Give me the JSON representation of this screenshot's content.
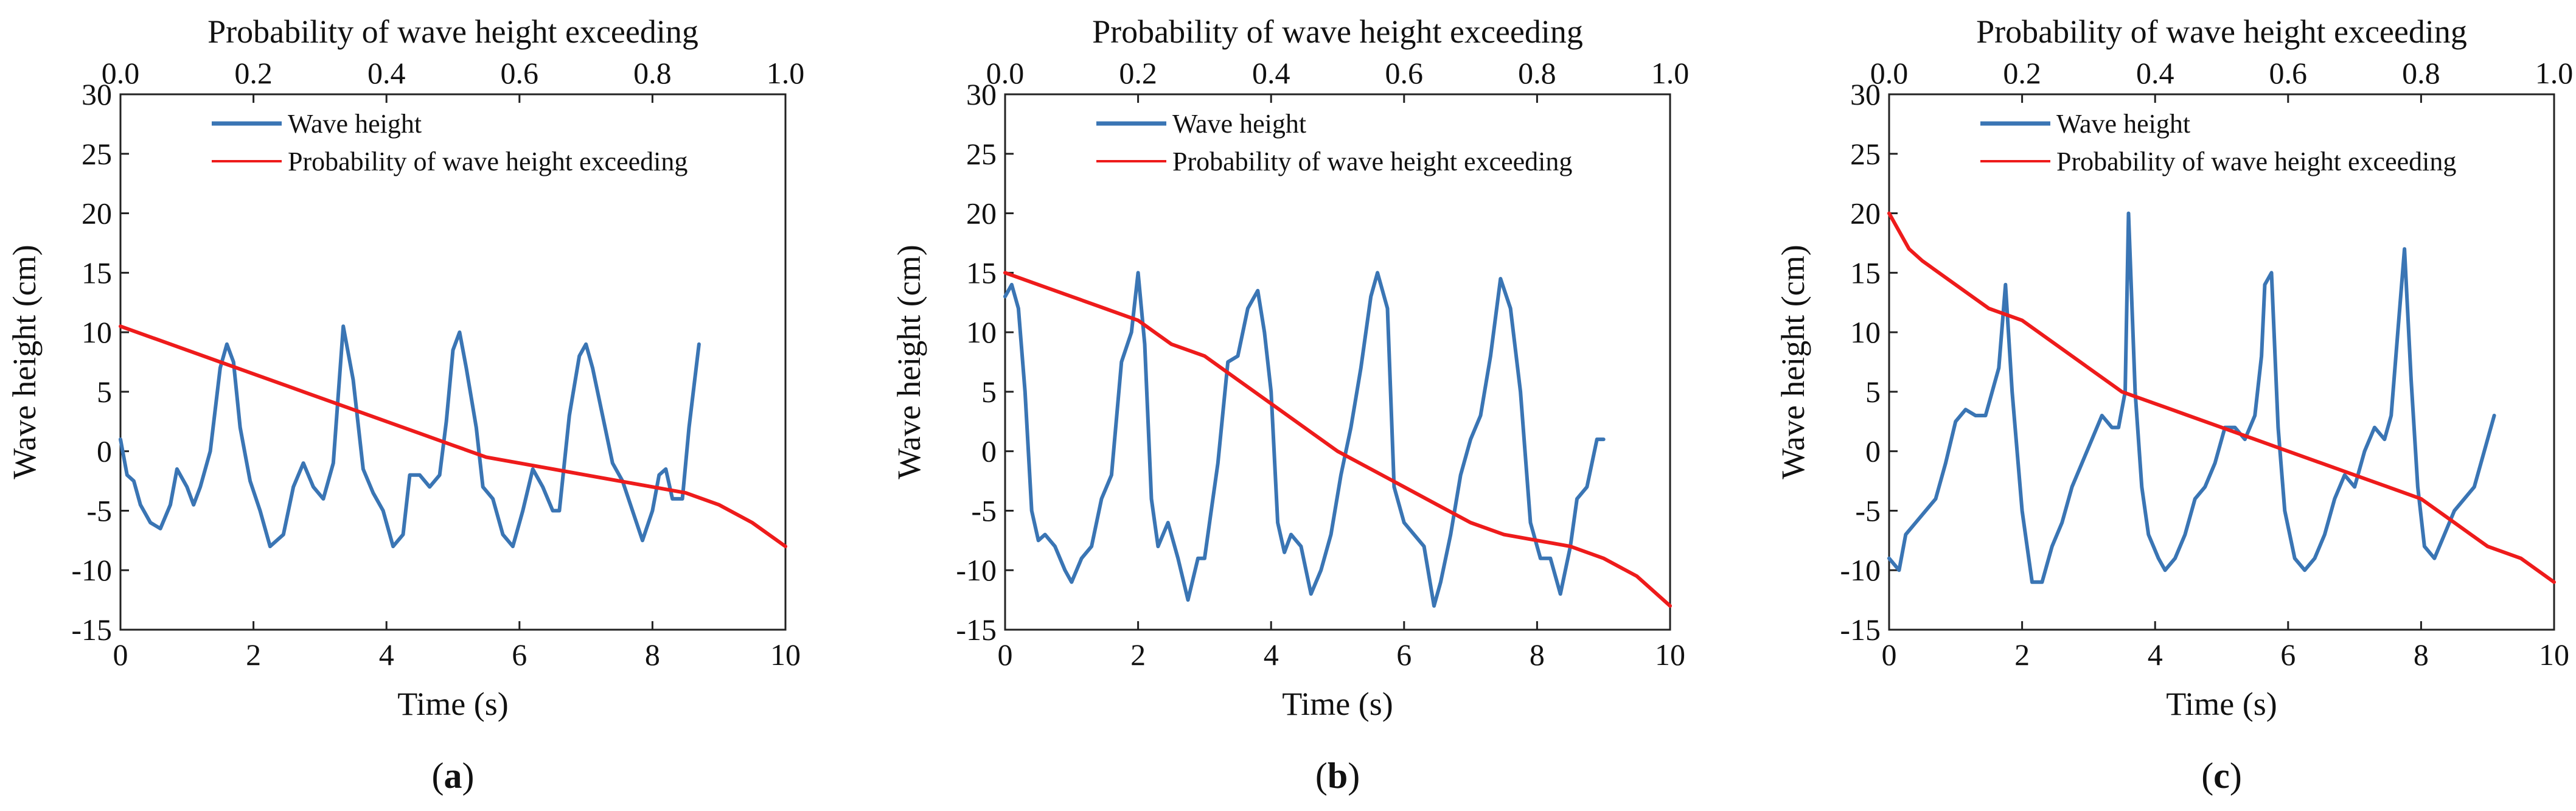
{
  "colors": {
    "wave": "#3a75b4",
    "prob": "#ee1b1b",
    "axis": "#222222"
  },
  "chart_data": [
    {
      "type": "line",
      "panel_label": "(a)",
      "panel_letter": "a",
      "xlabel": "Time (s)",
      "ylabel": "Wave height (cm)",
      "top_xlabel": "Probability of wave height exceeding",
      "xlim": [
        0,
        10
      ],
      "ylim": [
        -15,
        30
      ],
      "top_xlim": [
        0.0,
        1.0
      ],
      "x_ticks": [
        "0",
        "2",
        "4",
        "6",
        "8",
        "10"
      ],
      "y_ticks": [
        "-15",
        "-10",
        "-5",
        "0",
        "5",
        "10",
        "15",
        "20",
        "25",
        "30"
      ],
      "top_ticks": [
        "0.0",
        "0.2",
        "0.4",
        "0.6",
        "0.8",
        "1.0"
      ],
      "legend": [
        "Wave height",
        "Probability of wave height exceeding"
      ],
      "series": [
        {
          "name": "Wave height",
          "axis": "bottom",
          "color": "#3a75b4",
          "x": [
            0,
            0.1,
            0.2,
            0.3,
            0.45,
            0.6,
            0.75,
            0.85,
            1.0,
            1.1,
            1.2,
            1.35,
            1.5,
            1.6,
            1.7,
            1.8,
            1.95,
            2.1,
            2.25,
            2.45,
            2.6,
            2.75,
            2.9,
            3.05,
            3.2,
            3.35,
            3.5,
            3.65,
            3.8,
            3.95,
            4.1,
            4.25,
            4.35,
            4.5,
            4.65,
            4.8,
            4.9,
            5.0,
            5.1,
            5.2,
            5.35,
            5.45,
            5.6,
            5.75,
            5.9,
            6.05,
            6.2,
            6.35,
            6.5,
            6.6,
            6.75,
            6.9,
            7.0,
            7.1,
            7.25,
            7.4,
            7.55,
            7.7,
            7.85,
            8.0,
            8.1,
            8.2,
            8.3,
            8.45,
            8.55,
            8.7
          ],
          "y": [
            1,
            -2,
            -2.5,
            -4.5,
            -6,
            -6.5,
            -4.5,
            -1.5,
            -3,
            -4.5,
            -3,
            0,
            7,
            9,
            7.5,
            2,
            -2.5,
            -5,
            -8,
            -7,
            -3,
            -1,
            -3,
            -4,
            -1,
            10.5,
            6,
            -1.5,
            -3.5,
            -5,
            -8,
            -7,
            -2,
            -2,
            -3,
            -2,
            2.5,
            8.5,
            10,
            7,
            2,
            -3,
            -4,
            -7,
            -8,
            -5,
            -1.5,
            -3,
            -5,
            -5,
            3,
            8,
            9,
            7,
            3,
            -1,
            -2.5,
            -5,
            -7.5,
            -5,
            -2,
            -1.5,
            -4,
            -4,
            2,
            9
          ]
        },
        {
          "name": "Probability of wave height exceeding",
          "axis": "top",
          "color": "#ee1b1b",
          "x": [
            0,
            0.05,
            0.1,
            0.15,
            0.2,
            0.25,
            0.3,
            0.35,
            0.4,
            0.45,
            0.5,
            0.55,
            0.6,
            0.65,
            0.7,
            0.75,
            0.8,
            0.85,
            0.9,
            0.95,
            1.0
          ],
          "y": [
            10.5,
            9.5,
            8.5,
            7.5,
            6.5,
            5.5,
            4.5,
            3.5,
            2.5,
            1.5,
            0.5,
            -0.5,
            -1,
            -1.5,
            -2,
            -2.5,
            -3,
            -3.5,
            -4.5,
            -6,
            -8
          ]
        }
      ]
    },
    {
      "type": "line",
      "panel_label": "(b)",
      "panel_letter": "b",
      "xlabel": "Time (s)",
      "ylabel": "Wave height (cm)",
      "top_xlabel": "Probability of wave height exceeding",
      "xlim": [
        0,
        10
      ],
      "ylim": [
        -15,
        30
      ],
      "top_xlim": [
        0.0,
        1.0
      ],
      "x_ticks": [
        "0",
        "2",
        "4",
        "6",
        "8",
        "10"
      ],
      "y_ticks": [
        "-15",
        "-10",
        "-5",
        "0",
        "5",
        "10",
        "15",
        "20",
        "25",
        "30"
      ],
      "top_ticks": [
        "0.0",
        "0.2",
        "0.4",
        "0.6",
        "0.8",
        "1.0"
      ],
      "legend": [
        "Wave height",
        "Probability of wave height exceeding"
      ],
      "series": [
        {
          "name": "Wave height",
          "axis": "bottom",
          "color": "#3a75b4",
          "x": [
            0,
            0.1,
            0.2,
            0.3,
            0.4,
            0.5,
            0.6,
            0.75,
            0.9,
            1.0,
            1.15,
            1.3,
            1.45,
            1.6,
            1.75,
            1.9,
            2.0,
            2.1,
            2.2,
            2.3,
            2.45,
            2.6,
            2.75,
            2.9,
            3.0,
            3.1,
            3.2,
            3.35,
            3.5,
            3.65,
            3.8,
            3.9,
            4.0,
            4.1,
            4.2,
            4.3,
            4.45,
            4.6,
            4.75,
            4.9,
            5.05,
            5.2,
            5.35,
            5.5,
            5.6,
            5.75,
            5.85,
            6.0,
            6.15,
            6.3,
            6.45,
            6.55,
            6.7,
            6.85,
            7.0,
            7.15,
            7.3,
            7.45,
            7.6,
            7.75,
            7.9,
            8.05,
            8.2,
            8.35,
            8.5,
            8.6,
            8.75,
            8.9,
            9.0
          ],
          "y": [
            13,
            14,
            12,
            5,
            -5,
            -7.5,
            -7,
            -8,
            -10,
            -11,
            -9,
            -8,
            -4,
            -2,
            7.5,
            10,
            15,
            9,
            -4,
            -8,
            -6,
            -9,
            -12.5,
            -9,
            -9,
            -5,
            -1,
            7.5,
            8,
            12,
            13.5,
            10,
            5,
            -6,
            -8.5,
            -7,
            -8,
            -12,
            -10,
            -7,
            -2,
            2,
            7,
            13,
            15,
            12,
            -3,
            -6,
            -7,
            -8,
            -13,
            -11,
            -7,
            -2,
            1,
            3,
            8,
            14.5,
            12,
            5,
            -6,
            -9,
            -9,
            -12,
            -8,
            -4,
            -3,
            1,
            1
          ]
        },
        {
          "name": "Probability of wave height exceeding",
          "axis": "top",
          "color": "#ee1b1b",
          "x": [
            0,
            0.05,
            0.1,
            0.15,
            0.2,
            0.25,
            0.3,
            0.35,
            0.4,
            0.45,
            0.5,
            0.55,
            0.6,
            0.65,
            0.7,
            0.75,
            0.8,
            0.85,
            0.9,
            0.95,
            1.0
          ],
          "y": [
            15,
            14,
            13,
            12,
            11,
            9,
            8,
            6,
            4,
            2,
            0,
            -1.5,
            -3,
            -4.5,
            -6,
            -7,
            -7.5,
            -8,
            -9,
            -10.5,
            -13
          ]
        }
      ]
    },
    {
      "type": "line",
      "panel_label": "(c)",
      "panel_letter": "c",
      "xlabel": "Time (s)",
      "ylabel": "Wave height (cm)",
      "top_xlabel": "Probability of wave height exceeding",
      "xlim": [
        0,
        10
      ],
      "ylim": [
        -15,
        30
      ],
      "top_xlim": [
        0.0,
        1.0
      ],
      "x_ticks": [
        "0",
        "2",
        "4",
        "6",
        "8",
        "10"
      ],
      "y_ticks": [
        "-15",
        "-10",
        "-5",
        "0",
        "5",
        "10",
        "15",
        "20",
        "25",
        "30"
      ],
      "top_ticks": [
        "0.0",
        "0.2",
        "0.4",
        "0.6",
        "0.8",
        "1.0"
      ],
      "legend": [
        "Wave height",
        "Probability of wave height exceeding"
      ],
      "series": [
        {
          "name": "Wave height",
          "axis": "bottom",
          "color": "#3a75b4",
          "x": [
            0,
            0.15,
            0.25,
            0.4,
            0.55,
            0.7,
            0.85,
            1.0,
            1.15,
            1.3,
            1.45,
            1.55,
            1.65,
            1.75,
            1.85,
            2.0,
            2.15,
            2.3,
            2.45,
            2.6,
            2.75,
            2.9,
            3.05,
            3.2,
            3.35,
            3.45,
            3.55,
            3.6,
            3.7,
            3.8,
            3.9,
            4.05,
            4.15,
            4.3,
            4.45,
            4.6,
            4.75,
            4.9,
            5.05,
            5.2,
            5.35,
            5.5,
            5.6,
            5.65,
            5.75,
            5.85,
            5.95,
            6.1,
            6.25,
            6.4,
            6.55,
            6.7,
            6.85,
            7.0,
            7.15,
            7.3,
            7.45,
            7.55,
            7.65,
            7.75,
            7.85,
            7.95,
            8.05,
            8.2,
            8.35,
            8.5,
            8.65,
            8.8,
            8.95,
            9.1
          ],
          "y": [
            -9,
            -10,
            -7,
            -6,
            -5,
            -4,
            -1,
            2.5,
            3.5,
            3,
            3,
            5,
            7,
            14,
            5,
            -5,
            -11,
            -11,
            -8,
            -6,
            -3,
            -1,
            1,
            3,
            2,
            2,
            5,
            20,
            5,
            -3,
            -7,
            -9,
            -10,
            -9,
            -7,
            -4,
            -3,
            -1,
            2,
            2,
            1,
            3,
            8,
            14,
            15,
            2,
            -5,
            -9,
            -10,
            -9,
            -7,
            -4,
            -2,
            -3,
            0,
            2,
            1,
            3,
            10,
            17,
            6,
            -3,
            -8,
            -9,
            -7,
            -5,
            -4,
            -3,
            0,
            3
          ]
        },
        {
          "name": "Probability of wave height exceeding",
          "axis": "top",
          "color": "#ee1b1b",
          "x": [
            0,
            0.03,
            0.05,
            0.1,
            0.15,
            0.2,
            0.25,
            0.3,
            0.35,
            0.4,
            0.45,
            0.5,
            0.55,
            0.6,
            0.65,
            0.7,
            0.75,
            0.8,
            0.85,
            0.9,
            0.95,
            1.0
          ],
          "y": [
            20,
            17,
            16,
            14,
            12,
            11,
            9,
            7,
            5,
            4,
            3,
            2,
            1,
            0,
            -1,
            -2,
            -3,
            -4,
            -6,
            -8,
            -9,
            -11
          ]
        }
      ]
    }
  ]
}
